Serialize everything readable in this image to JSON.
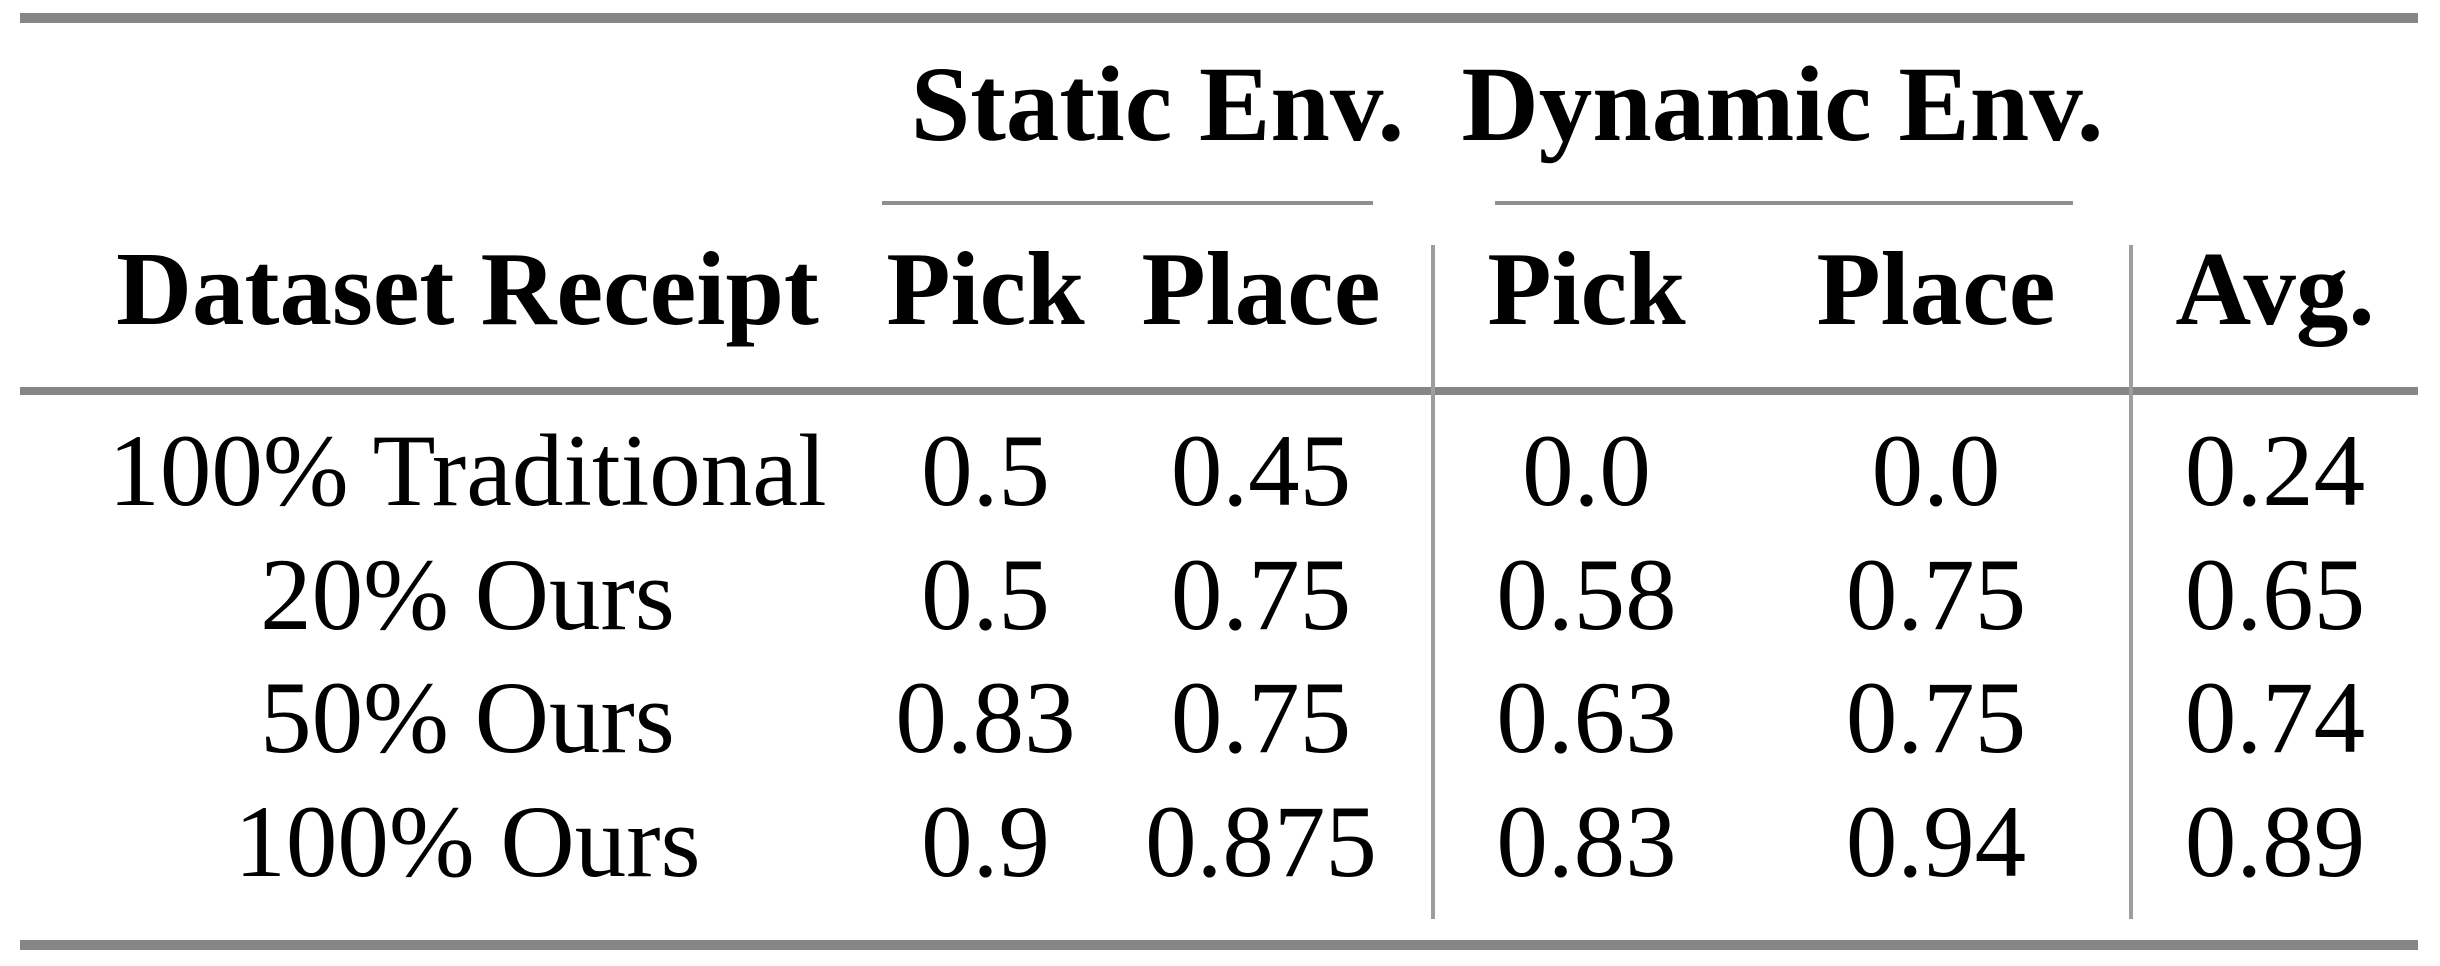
{
  "table": {
    "group_headers": [
      {
        "label": "Static Env."
      },
      {
        "label": "Dynamic Env."
      }
    ],
    "col_headers": [
      "Dataset Receipt",
      "Pick",
      "Place",
      "Pick",
      "Place",
      "Avg."
    ],
    "rows": [
      {
        "cells": [
          "100% Traditional",
          "0.5",
          "0.45",
          "0.0",
          "0.0",
          "0.24"
        ]
      },
      {
        "cells": [
          "20% Ours",
          "0.5",
          "0.75",
          "0.58",
          "0.75",
          "0.65"
        ]
      },
      {
        "cells": [
          "50% Ours",
          "0.83",
          "0.75",
          "0.63",
          "0.75",
          "0.74"
        ]
      },
      {
        "cells": [
          "100% Ours",
          "0.9",
          "0.875",
          "0.83",
          "0.94",
          "0.89"
        ]
      }
    ],
    "colors": {
      "rule_heavy": "#868686",
      "rule_cmid": "#8f8f8f",
      "rule_vertical": "#9e9e9e",
      "text": "#000000",
      "background": "#ffffff"
    }
  },
  "chart_data": {
    "type": "table",
    "columns": [
      "Dataset Receipt",
      "Static Env. Pick",
      "Static Env. Place",
      "Dynamic Env. Pick",
      "Dynamic Env. Place",
      "Avg."
    ],
    "rows": [
      [
        "100% Traditional",
        0.5,
        0.45,
        0.0,
        0.0,
        0.24
      ],
      [
        "20% Ours",
        0.5,
        0.75,
        0.58,
        0.75,
        0.65
      ],
      [
        "50% Ours",
        0.83,
        0.75,
        0.63,
        0.75,
        0.74
      ],
      [
        "100% Ours",
        0.9,
        0.875,
        0.83,
        0.94,
        0.89
      ]
    ]
  }
}
